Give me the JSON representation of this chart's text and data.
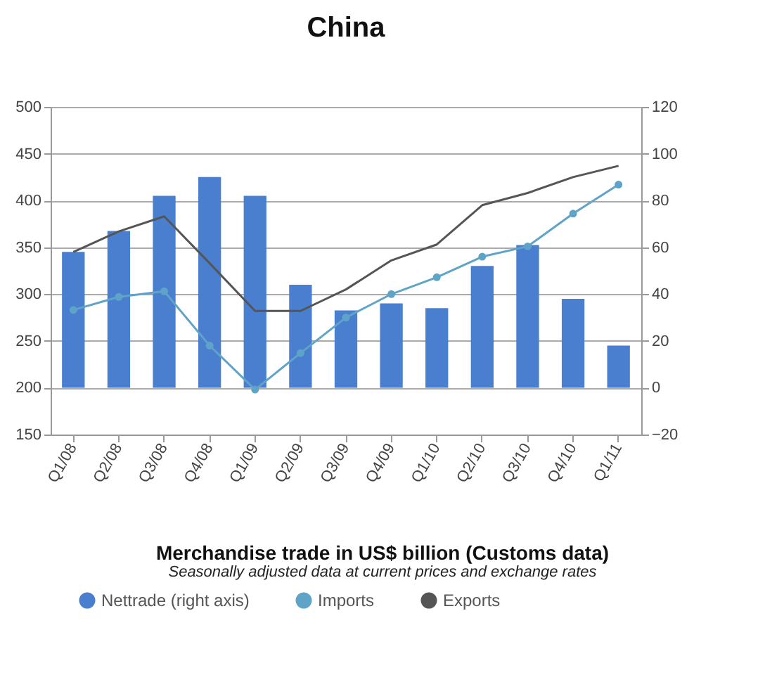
{
  "chart_data": {
    "type": "bar",
    "title": "China",
    "annotations": [
      "Merchandise trade in US$ billion (Customs data)",
      "Seasonally adjusted data at current prices and exchange rates"
    ],
    "categories": [
      "Q1/08",
      "Q2/08",
      "Q3/08",
      "Q4/08",
      "Q1/09",
      "Q2/09",
      "Q3/09",
      "Q4/09",
      "Q1/10",
      "Q2/10",
      "Q3/10",
      "Q4/10",
      "Q1/11"
    ],
    "series": [
      {
        "name": "Nettrade (right axis)",
        "axis": "y2",
        "color": "#4a7fd0",
        "values": [
          58,
          67,
          82,
          90,
          82,
          44,
          33,
          36,
          34,
          52,
          61,
          38,
          18
        ]
      },
      {
        "name": "Imports",
        "type": "line",
        "color": "#5fa3c8",
        "marker": "circle",
        "values": [
          283,
          297,
          303,
          245,
          198,
          237,
          275,
          300,
          318,
          340,
          351,
          386,
          417
        ]
      },
      {
        "name": "Exports",
        "type": "line",
        "color": "#555555",
        "marker": "none",
        "values": [
          345,
          367,
          383,
          333,
          282,
          282,
          305,
          336,
          353,
          395,
          408,
          425,
          437
        ]
      }
    ],
    "ylim": [
      150,
      500
    ],
    "yticks": [
      150,
      200,
      250,
      300,
      350,
      400,
      450,
      500
    ],
    "y2lim": [
      -20,
      120
    ],
    "y2ticks": [
      -20,
      0,
      20,
      40,
      60,
      80,
      100,
      120
    ],
    "grid": "y",
    "legend": "bottom"
  }
}
